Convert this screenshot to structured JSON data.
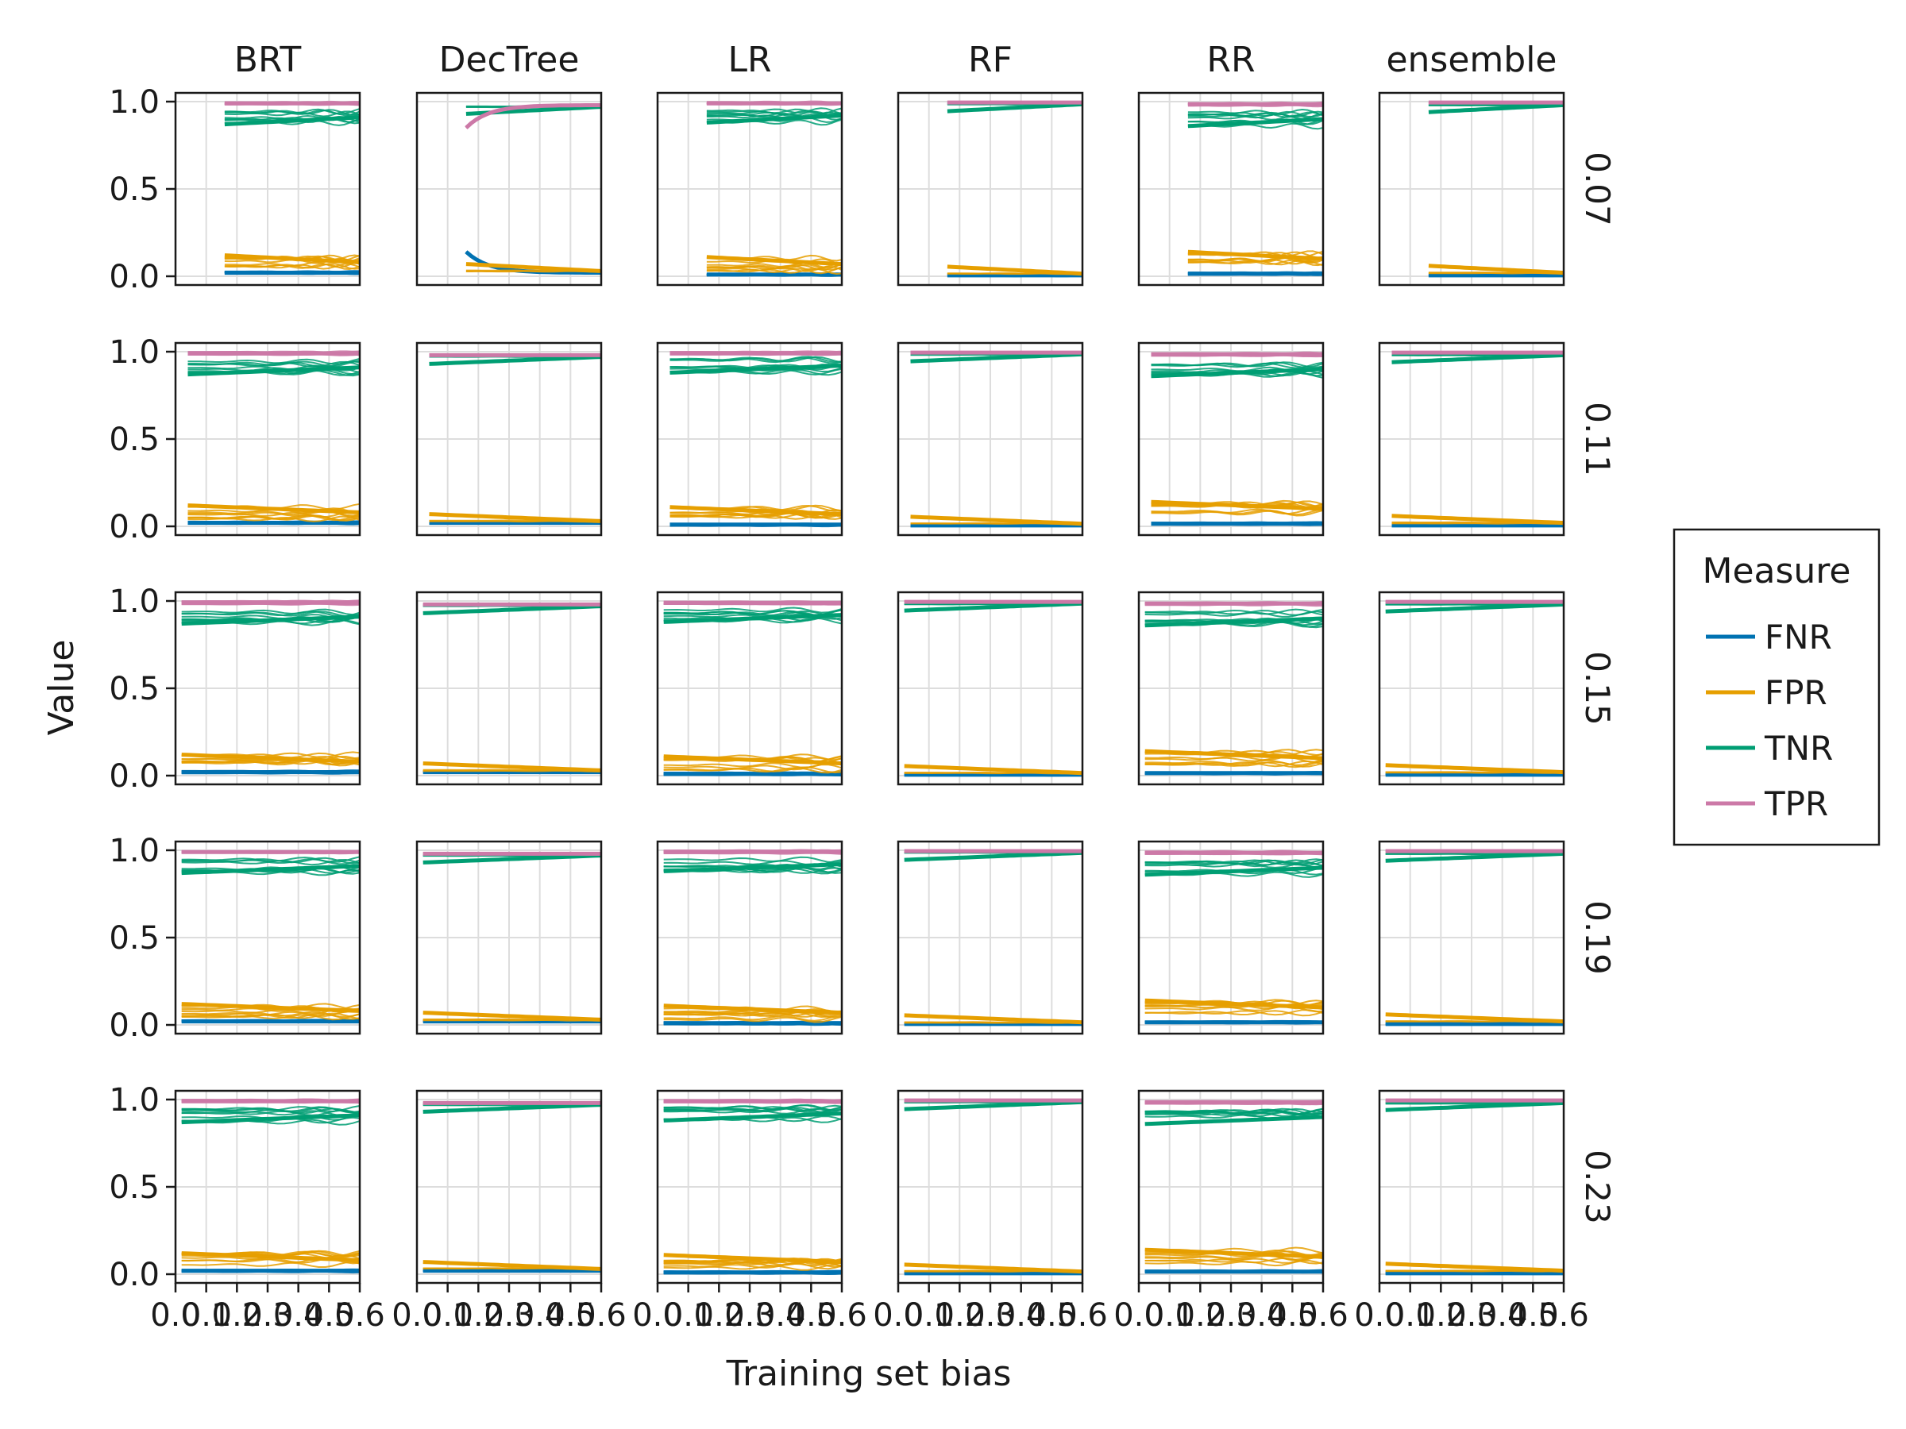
{
  "chart_data": {
    "type": "line",
    "layout": "facet-grid",
    "columns": [
      "BRT",
      "DecTree",
      "LR",
      "RF",
      "RR",
      "ensemble"
    ],
    "rows": [
      "0.07",
      "0.11",
      "0.15",
      "0.19",
      "0.23"
    ],
    "xlabel": "Training set bias",
    "ylabel": "Value",
    "xlim": [
      0.0,
      0.6
    ],
    "ylim": [
      0.0,
      1.0
    ],
    "xticks": [
      0.0,
      0.1,
      0.2,
      0.3,
      0.4,
      0.5,
      0.6
    ],
    "xtick_labels": [
      "0.0",
      "0.1",
      "0.2",
      "0.3",
      "0.4",
      "0.5",
      "0.6"
    ],
    "yticks": [
      0.0,
      0.5,
      1.0
    ],
    "ytick_labels": [
      "0.0",
      "0.5",
      "1.0"
    ],
    "grid": true,
    "legend": {
      "title": "Measure",
      "placement": "right",
      "entries": [
        {
          "name": "FNR",
          "color": "#0072b2"
        },
        {
          "name": "FPR",
          "color": "#e69f00"
        },
        {
          "name": "TNR",
          "color": "#009e73"
        },
        {
          "name": "TPR",
          "color": "#cc79a7"
        }
      ]
    },
    "series_levels": {
      "BRT": {
        "FNR": 0.02,
        "FPR": 0.08,
        "TNR": 0.91,
        "TPR": 0.99
      },
      "DecTree": {
        "FNR": 0.02,
        "FPR": 0.03,
        "TNR": 0.97,
        "TPR": 0.98
      },
      "LR": {
        "FNR": 0.01,
        "FPR": 0.07,
        "TNR": 0.92,
        "TPR": 0.99
      },
      "RF": {
        "FNR": 0.005,
        "FPR": 0.015,
        "TNR": 0.985,
        "TPR": 0.995
      },
      "RR": {
        "FNR": 0.015,
        "FPR": 0.1,
        "TNR": 0.9,
        "TPR": 0.985
      },
      "ensemble": {
        "FNR": 0.005,
        "FPR": 0.02,
        "TNR": 0.98,
        "TPR": 0.995
      }
    },
    "x_start_by_row": [
      0.16,
      0.04,
      0.02,
      0.02,
      0.02
    ],
    "colors": {
      "frame": "#1a1a1a",
      "grid": "#dddddd"
    }
  }
}
